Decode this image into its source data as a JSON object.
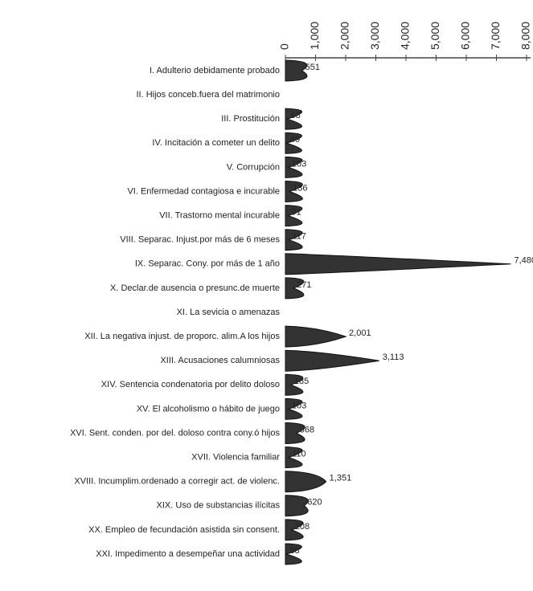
{
  "chart_data": {
    "type": "bar",
    "orientation": "horizontal",
    "categories": [
      "I. Adulterio debidamente probado",
      "II. Hijos conceb.fuera del matrimonio",
      "III. Prostitución",
      "IV. Incitación a cometer un delito",
      "V. Corrupción",
      "VI. Enfermedad contagiosa e incurable",
      "VII. Trastorno mental incurable",
      "VIII. Separac. Injust.por más de 6 meses",
      "IX. Separac. Cony. por más de 1 año",
      "X. Declar.de ausencia o presunc.de muerte",
      "XI. La sevicia o amenazas",
      "XII. La negativa injust. de proporc. alim.A los hijos",
      "XIII. Acusaciones calumniosas",
      "XIV. Sentencia condenatoria por delito doloso",
      "XV. El alcoholismo o hábito de juego",
      "XVI. Sent. conden. por del. doloso contra cony.ó hijos",
      "XVII. Violencia familiar",
      "XVIII. Incumplim.ordenado a corregir act. de violenc.",
      "XIX. Uso de substancias ilícitas",
      "XX. Empleo de fecundación asistida sin consent.",
      "XXI. Impedimento a desempeñar una actividad"
    ],
    "values": [
      551,
      null,
      68,
      49,
      103,
      136,
      91,
      117,
      7480,
      271,
      null,
      2001,
      3113,
      185,
      103,
      368,
      110,
      1351,
      620,
      208,
      38
    ],
    "value_labels": [
      "551",
      null,
      "68",
      "49",
      "103",
      "136",
      "91",
      "117",
      "7,480",
      "271",
      null,
      "2,001",
      "3,113",
      "185",
      "103",
      "368",
      "110",
      "1,351",
      "620",
      "208",
      "38"
    ],
    "color": "#333333",
    "ylim": [
      0,
      8000
    ],
    "yticks": [
      0,
      {
        "value": 1000,
        "label": "1,000"
      },
      {
        "value": 2000,
        "label": "2,000"
      },
      {
        "value": 3000,
        "label": "3,000"
      },
      {
        "value": 4000,
        "label": "4,000"
      },
      {
        "value": 5000,
        "label": "5,000"
      },
      {
        "value": 6000,
        "label": "6,000"
      },
      {
        "value": 7000,
        "label": "7,000"
      },
      {
        "value": 8000,
        "label": "8,000"
      }
    ]
  }
}
